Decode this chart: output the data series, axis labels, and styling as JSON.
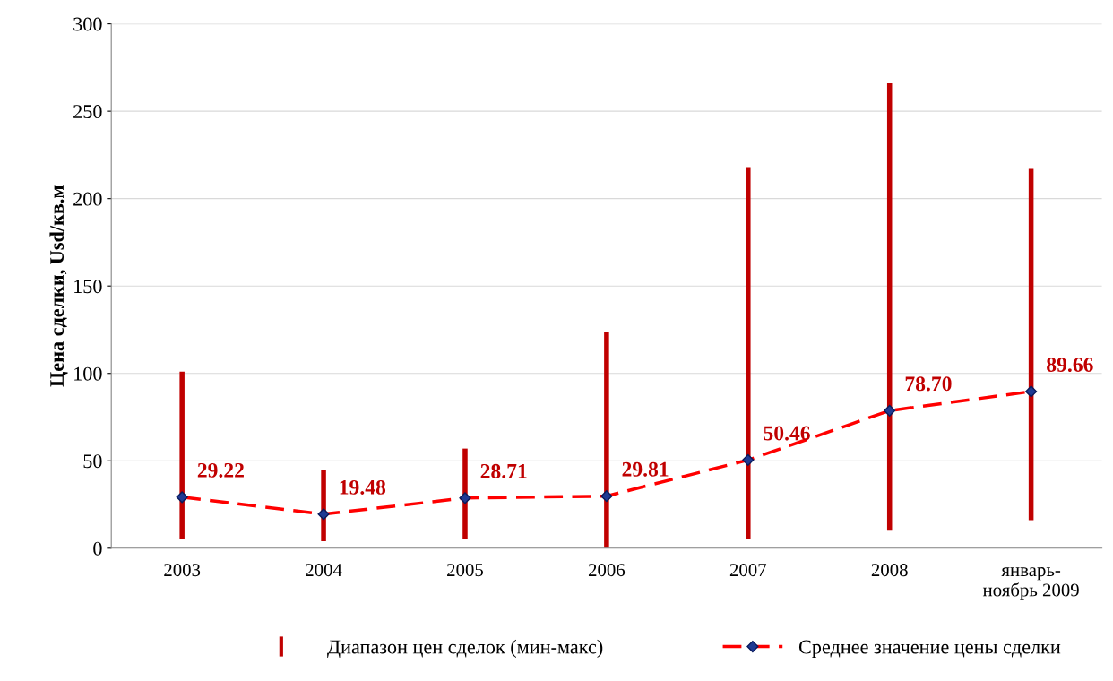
{
  "chart_data": {
    "type": "bar",
    "ylabel": "Цена сделки, Usd/кв.м",
    "categories": [
      "2003",
      "2004",
      "2005",
      "2006",
      "2007",
      "2008",
      "январь-\nноябрь 2009"
    ],
    "series": [
      {
        "name": "Диапазон цен сделок (мин-макс)",
        "color": "#c00000",
        "base": [
          5,
          4,
          5,
          0,
          5,
          10,
          16
        ],
        "values": [
          96,
          41,
          52,
          124,
          213,
          256,
          201
        ]
      },
      {
        "name": "Среднее значение цены сделки",
        "type": "line",
        "color": "#ff0000",
        "marker": "diamond",
        "line_style": "dashed",
        "values": [
          29.22,
          19.48,
          28.71,
          29.81,
          50.46,
          78.7,
          89.66
        ],
        "value_labels": [
          "29.22",
          "19.48",
          "28.71",
          "29.81",
          "50.46",
          "78.70",
          "89.66"
        ]
      }
    ],
    "ylim": [
      0,
      300
    ],
    "yticks": [
      0,
      50,
      100,
      150,
      200,
      250,
      300
    ],
    "grid": "y",
    "legend": "bottom"
  }
}
